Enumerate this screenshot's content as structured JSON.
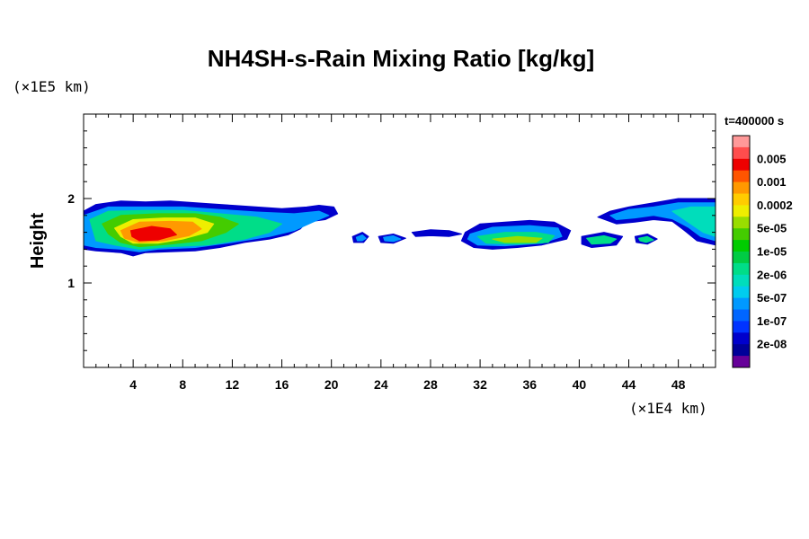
{
  "chart_data": {
    "type": "heatmap",
    "title": "NH4SH-s-Rain Mixing Ratio [kg/kg]",
    "ylabel": "Height",
    "xlabel": "",
    "x_unit": "(×1E4 km)",
    "y_unit": "(×1E5 km)",
    "time_label": "t=400000 s",
    "xlim": [
      0,
      51
    ],
    "ylim": [
      0,
      3
    ],
    "x_ticks": [
      4,
      8,
      12,
      16,
      20,
      24,
      28,
      32,
      36,
      40,
      44,
      48
    ],
    "y_ticks": [
      1,
      2
    ],
    "grid": false,
    "legend_position": "right",
    "colorbar": [
      {
        "label": "",
        "color": "#ff9999"
      },
      {
        "label": "0.005",
        "color": "#ff4d4d"
      },
      {
        "label": "",
        "color": "#ee0000"
      },
      {
        "label": "0.001",
        "color": "#ff5500"
      },
      {
        "label": "",
        "color": "#ff9900"
      },
      {
        "label": "0.0002",
        "color": "#ffcc00"
      },
      {
        "label": "",
        "color": "#eeee00"
      },
      {
        "label": "5e-05",
        "color": "#99dd00"
      },
      {
        "label": "",
        "color": "#44cc00"
      },
      {
        "label": "1e-05",
        "color": "#00cc00"
      },
      {
        "label": "",
        "color": "#00cc44"
      },
      {
        "label": "2e-06",
        "color": "#00dd88"
      },
      {
        "label": "",
        "color": "#00ddbb"
      },
      {
        "label": "5e-07",
        "color": "#00ccee"
      },
      {
        "label": "",
        "color": "#0099ff"
      },
      {
        "label": "1e-07",
        "color": "#0066ff"
      },
      {
        "label": "",
        "color": "#0033ff"
      },
      {
        "label": "2e-08",
        "color": "#0000cc"
      },
      {
        "label": "",
        "color": "#000099"
      },
      {
        "label": "",
        "color": "#660099"
      }
    ],
    "regions": [
      {
        "name": "cloud-band-west",
        "color": "#0000cc",
        "points": [
          [
            0,
            1.85
          ],
          [
            1,
            1.93
          ],
          [
            3,
            1.97
          ],
          [
            5,
            1.96
          ],
          [
            7,
            1.97
          ],
          [
            10,
            1.94
          ],
          [
            12,
            1.92
          ],
          [
            14,
            1.9
          ],
          [
            16,
            1.88
          ],
          [
            18,
            1.9
          ],
          [
            19,
            1.92
          ],
          [
            20.2,
            1.9
          ],
          [
            20.5,
            1.82
          ],
          [
            19.5,
            1.75
          ],
          [
            18,
            1.72
          ],
          [
            17.5,
            1.64
          ],
          [
            16.5,
            1.57
          ],
          [
            15,
            1.52
          ],
          [
            13,
            1.48
          ],
          [
            11,
            1.42
          ],
          [
            9,
            1.38
          ],
          [
            7,
            1.37
          ],
          [
            5,
            1.36
          ],
          [
            4,
            1.32
          ],
          [
            3,
            1.36
          ],
          [
            1,
            1.38
          ],
          [
            0,
            1.4
          ]
        ]
      },
      {
        "name": "cloud-band-west",
        "color": "#0099ff",
        "points": [
          [
            0,
            1.8
          ],
          [
            2,
            1.9
          ],
          [
            5,
            1.9
          ],
          [
            8,
            1.9
          ],
          [
            11,
            1.87
          ],
          [
            14,
            1.84
          ],
          [
            17,
            1.82
          ],
          [
            19,
            1.85
          ],
          [
            19.8,
            1.8
          ],
          [
            18.5,
            1.72
          ],
          [
            17,
            1.62
          ],
          [
            15,
            1.55
          ],
          [
            12,
            1.48
          ],
          [
            9,
            1.42
          ],
          [
            6,
            1.4
          ],
          [
            4.5,
            1.37
          ],
          [
            3,
            1.4
          ],
          [
            1,
            1.42
          ],
          [
            0,
            1.45
          ]
        ]
      },
      {
        "name": "cloud-band-west",
        "color": "#00dd88",
        "points": [
          [
            0.5,
            1.75
          ],
          [
            2,
            1.85
          ],
          [
            5,
            1.86
          ],
          [
            8,
            1.86
          ],
          [
            11,
            1.82
          ],
          [
            14,
            1.78
          ],
          [
            16,
            1.7
          ],
          [
            15,
            1.6
          ],
          [
            13,
            1.52
          ],
          [
            10,
            1.45
          ],
          [
            7,
            1.43
          ],
          [
            4.5,
            1.4
          ],
          [
            2.5,
            1.45
          ],
          [
            1,
            1.5
          ]
        ]
      },
      {
        "name": "cloud-band-west",
        "color": "#44cc00",
        "points": [
          [
            1.5,
            1.7
          ],
          [
            3,
            1.8
          ],
          [
            6,
            1.82
          ],
          [
            9,
            1.82
          ],
          [
            11,
            1.78
          ],
          [
            12.5,
            1.7
          ],
          [
            11.5,
            1.6
          ],
          [
            9.5,
            1.5
          ],
          [
            7,
            1.46
          ],
          [
            4.5,
            1.43
          ],
          [
            3,
            1.48
          ],
          [
            2,
            1.58
          ]
        ]
      },
      {
        "name": "cloud-band-west",
        "color": "#eeee00",
        "points": [
          [
            2.5,
            1.65
          ],
          [
            4,
            1.75
          ],
          [
            6.5,
            1.77
          ],
          [
            9,
            1.77
          ],
          [
            10.5,
            1.7
          ],
          [
            10,
            1.6
          ],
          [
            8,
            1.52
          ],
          [
            6,
            1.47
          ],
          [
            4,
            1.47
          ],
          [
            3,
            1.55
          ]
        ]
      },
      {
        "name": "cloud-band-west",
        "color": "#ff9900",
        "points": [
          [
            3,
            1.62
          ],
          [
            4.5,
            1.72
          ],
          [
            7,
            1.73
          ],
          [
            8.8,
            1.72
          ],
          [
            9.5,
            1.64
          ],
          [
            8.5,
            1.56
          ],
          [
            6.5,
            1.5
          ],
          [
            4.5,
            1.48
          ],
          [
            3.3,
            1.53
          ]
        ]
      },
      {
        "name": "cloud-band-west",
        "color": "#ee0000",
        "points": [
          [
            3.8,
            1.62
          ],
          [
            5.5,
            1.67
          ],
          [
            7,
            1.64
          ],
          [
            7.5,
            1.57
          ],
          [
            6,
            1.51
          ],
          [
            4.5,
            1.5
          ],
          [
            3.9,
            1.55
          ]
        ]
      },
      {
        "name": "cloud-blob-22",
        "color": "#0000cc",
        "points": [
          [
            21.7,
            1.55
          ],
          [
            22.5,
            1.6
          ],
          [
            23,
            1.55
          ],
          [
            22.6,
            1.48
          ],
          [
            21.8,
            1.48
          ]
        ]
      },
      {
        "name": "cloud-blob-22",
        "color": "#0099ff",
        "points": [
          [
            22,
            1.54
          ],
          [
            22.5,
            1.57
          ],
          [
            22.8,
            1.53
          ],
          [
            22.5,
            1.5
          ],
          [
            22.1,
            1.5
          ]
        ]
      },
      {
        "name": "cloud-blob-24",
        "color": "#0000cc",
        "points": [
          [
            23.8,
            1.55
          ],
          [
            25,
            1.58
          ],
          [
            26,
            1.53
          ],
          [
            25,
            1.47
          ],
          [
            24,
            1.48
          ]
        ]
      },
      {
        "name": "cloud-blob-24",
        "color": "#0099ff",
        "points": [
          [
            24.2,
            1.54
          ],
          [
            25,
            1.56
          ],
          [
            25.6,
            1.52
          ],
          [
            25,
            1.49
          ],
          [
            24.3,
            1.5
          ]
        ]
      },
      {
        "name": "cloud-wisp-28",
        "color": "#0000cc",
        "points": [
          [
            26.5,
            1.6
          ],
          [
            28,
            1.63
          ],
          [
            29.5,
            1.62
          ],
          [
            30.5,
            1.58
          ],
          [
            29.5,
            1.55
          ],
          [
            28,
            1.56
          ],
          [
            26.8,
            1.55
          ]
        ]
      },
      {
        "name": "cloud-band-central",
        "color": "#0000cc",
        "points": [
          [
            30.8,
            1.6
          ],
          [
            32,
            1.7
          ],
          [
            34,
            1.72
          ],
          [
            36,
            1.74
          ],
          [
            38,
            1.72
          ],
          [
            39.3,
            1.62
          ],
          [
            39,
            1.52
          ],
          [
            37,
            1.45
          ],
          [
            35,
            1.42
          ],
          [
            33,
            1.4
          ],
          [
            31.5,
            1.42
          ],
          [
            30.5,
            1.5
          ]
        ]
      },
      {
        "name": "cloud-band-central",
        "color": "#0099ff",
        "points": [
          [
            31.2,
            1.58
          ],
          [
            33,
            1.66
          ],
          [
            36,
            1.68
          ],
          [
            38.3,
            1.65
          ],
          [
            38.6,
            1.55
          ],
          [
            37,
            1.47
          ],
          [
            34,
            1.44
          ],
          [
            31.8,
            1.45
          ],
          [
            31,
            1.52
          ]
        ]
      },
      {
        "name": "cloud-band-central",
        "color": "#00dd88",
        "points": [
          [
            31.8,
            1.55
          ],
          [
            34,
            1.6
          ],
          [
            36.5,
            1.6
          ],
          [
            38,
            1.56
          ],
          [
            37.5,
            1.48
          ],
          [
            35,
            1.46
          ],
          [
            32.5,
            1.47
          ]
        ]
      },
      {
        "name": "cloud-band-central",
        "color": "#99dd00",
        "points": [
          [
            33,
            1.52
          ],
          [
            35,
            1.55
          ],
          [
            37,
            1.53
          ],
          [
            36.5,
            1.48
          ],
          [
            34,
            1.48
          ]
        ]
      },
      {
        "name": "cloud-blob-41",
        "color": "#0000cc",
        "points": [
          [
            40.2,
            1.55
          ],
          [
            42,
            1.6
          ],
          [
            43.5,
            1.55
          ],
          [
            43,
            1.45
          ],
          [
            41,
            1.42
          ],
          [
            40.2,
            1.46
          ]
        ]
      },
      {
        "name": "cloud-blob-41",
        "color": "#00dd88",
        "points": [
          [
            40.6,
            1.53
          ],
          [
            42,
            1.56
          ],
          [
            43,
            1.52
          ],
          [
            42.5,
            1.47
          ],
          [
            41,
            1.46
          ]
        ]
      },
      {
        "name": "cloud-blob-45",
        "color": "#0000cc",
        "points": [
          [
            44.5,
            1.55
          ],
          [
            45.5,
            1.58
          ],
          [
            46.3,
            1.52
          ],
          [
            45.5,
            1.46
          ],
          [
            44.6,
            1.48
          ]
        ]
      },
      {
        "name": "cloud-blob-45",
        "color": "#00dd88",
        "points": [
          [
            44.8,
            1.53
          ],
          [
            45.5,
            1.55
          ],
          [
            46,
            1.51
          ],
          [
            45.4,
            1.48
          ],
          [
            44.9,
            1.5
          ]
        ]
      },
      {
        "name": "cloud-band-east",
        "color": "#0000cc",
        "points": [
          [
            41.5,
            1.78
          ],
          [
            42.5,
            1.85
          ],
          [
            44,
            1.9
          ],
          [
            46,
            1.95
          ],
          [
            48,
            2.0
          ],
          [
            51,
            2.0
          ],
          [
            51,
            1.45
          ],
          [
            49.5,
            1.5
          ],
          [
            48.5,
            1.62
          ],
          [
            47.5,
            1.73
          ],
          [
            46,
            1.75
          ],
          [
            44.5,
            1.72
          ],
          [
            43,
            1.7
          ]
        ]
      },
      {
        "name": "cloud-band-east",
        "color": "#0099ff",
        "points": [
          [
            42.5,
            1.8
          ],
          [
            44,
            1.87
          ],
          [
            46,
            1.9
          ],
          [
            48,
            1.95
          ],
          [
            51,
            1.95
          ],
          [
            51,
            1.5
          ],
          [
            49.8,
            1.55
          ],
          [
            48.8,
            1.66
          ],
          [
            47.5,
            1.76
          ],
          [
            46,
            1.8
          ],
          [
            44.5,
            1.77
          ],
          [
            43,
            1.75
          ]
        ]
      },
      {
        "name": "cloud-band-east",
        "color": "#00ddbb",
        "points": [
          [
            47.5,
            1.85
          ],
          [
            49,
            1.9
          ],
          [
            51,
            1.9
          ],
          [
            51,
            1.55
          ],
          [
            50,
            1.6
          ],
          [
            49,
            1.7
          ],
          [
            48,
            1.8
          ]
        ]
      }
    ]
  }
}
